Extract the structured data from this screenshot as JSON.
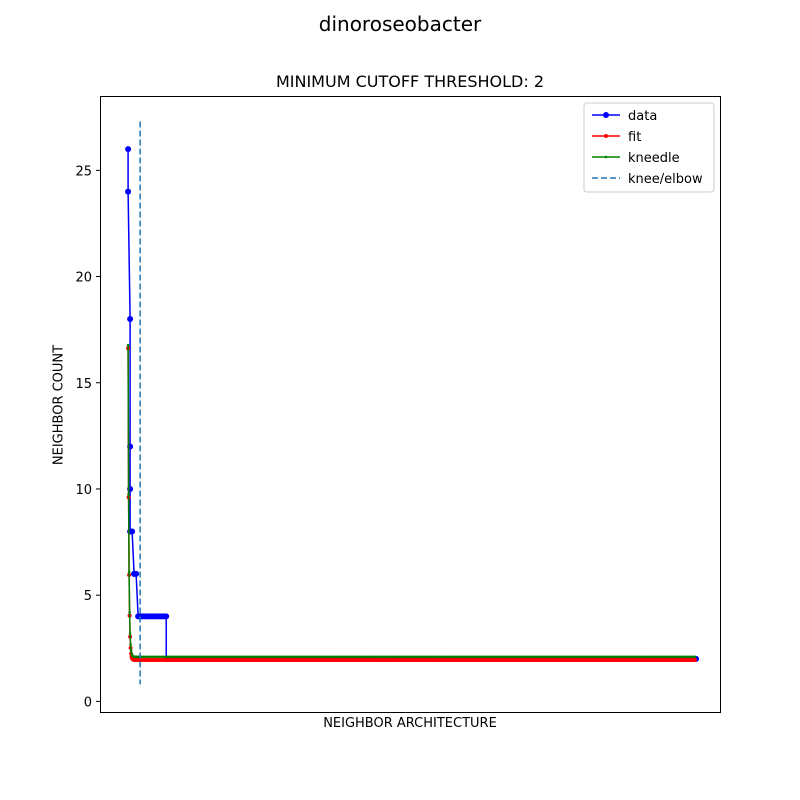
{
  "suptitle": "dinoroseobacter",
  "chart_data": {
    "type": "line",
    "title": "MINIMUM CUTOFF THRESHOLD: 2",
    "xlabel": "NEIGHBOR ARCHITECTURE",
    "ylabel": "NEIGHBOR COUNT",
    "ylim": [
      -0.5,
      28.5
    ],
    "xlim": [
      -14,
      295
    ],
    "yticks": [
      0,
      5,
      10,
      15,
      20,
      25
    ],
    "xticks_shown": false,
    "legend": {
      "placement": "top-right",
      "entries": [
        "data",
        "fit",
        "kneedle",
        "knee/elbow"
      ]
    },
    "series": [
      {
        "name": "data",
        "color": "#0000ff",
        "style": "line-dot",
        "x": [
          0,
          0,
          1,
          1,
          1,
          1,
          2,
          3,
          3,
          4,
          5,
          6,
          6,
          7,
          8,
          9,
          10,
          11,
          12,
          13,
          14,
          15,
          16,
          17,
          18,
          19,
          19,
          20,
          283
        ],
        "y": [
          26,
          24,
          18,
          12,
          10,
          8,
          8,
          6,
          6,
          6,
          4,
          4,
          4,
          4,
          4,
          4,
          4,
          4,
          4,
          4,
          4,
          4,
          4,
          4,
          4,
          4,
          2,
          2,
          2
        ]
      },
      {
        "name": "fit",
        "color": "#ff0000",
        "style": "line-dot",
        "model": {
          "a": 2.6,
          "b": 19.03,
          "c": 1.95,
          "x0": 0.1
        }
      },
      {
        "name": "kneedle",
        "color": "#008000",
        "style": "line-dot-small",
        "model": {
          "a": 2.6,
          "b": 19.03,
          "c": 2.1,
          "x0": 0.1
        }
      },
      {
        "name": "knee/elbow",
        "color": "#1f77b4",
        "style": "dashed-vertical",
        "x": 6,
        "y_range": [
          0.8,
          27.3
        ]
      }
    ]
  }
}
